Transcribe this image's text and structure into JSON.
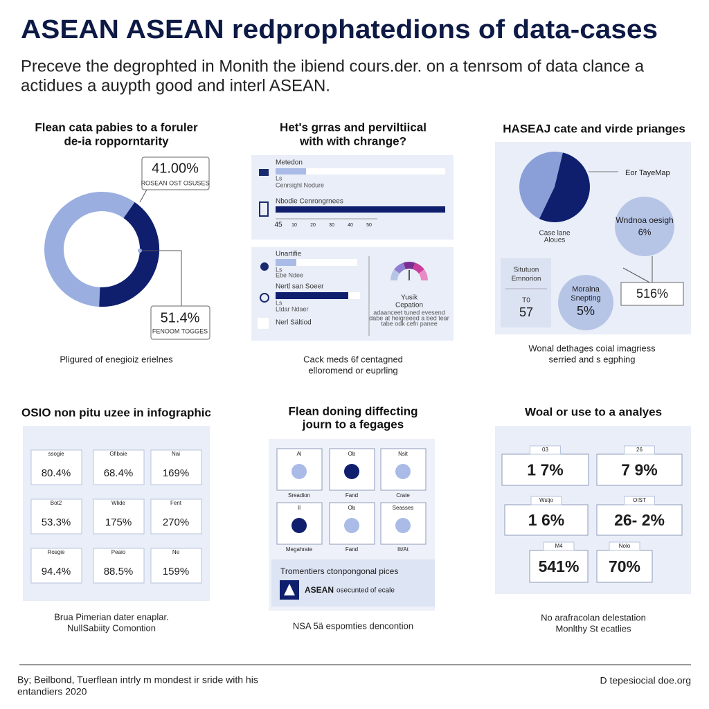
{
  "header": {
    "title": "ASEAN ASEAN redprophatedions of data-cases",
    "subtitle": [
      "Preceve the degrophted in Monith the ibiend cours.der. on a tenrsom of data clance a",
      "actidues a auypth good and interl ASEAN."
    ]
  },
  "donut_panel": {
    "title": [
      "Flean cata pabies to a foruler",
      "de-ia ropporntarity"
    ],
    "callouts": [
      {
        "share": {
          "value": 41,
          "label": "41.00%"
        },
        "note": "ROSEAN OST OSUSES"
      },
      {
        "share": "51.4%",
        "note": "FENOOM TOGGES"
      }
    ],
    "caption": "Pligured of enegioiz erielnes"
  },
  "bars_panel": {
    "title": [
      "Het's grras and perviltiical",
      "with with chrange?"
    ],
    "top_box": {
      "rows": [
        {
          "label": "Metedon",
          "sub": [
            "Ls",
            "Cenrsighl Nodure"
          ]
        },
        {
          "label": "Nbodie Cenrongrnees"
        }
      ],
      "axis": [
        "45",
        "10",
        "20",
        "30",
        "40",
        "50"
      ]
    },
    "bottom_box": {
      "rows": [
        {
          "label": "Unartifie",
          "sub": [
            "Ls",
            "Ebe Ndee"
          ]
        },
        {
          "label": "Nertl san Soeer",
          "sub": [
            "Ls",
            "Ltdar Ndaer"
          ]
        },
        {
          "label": "Nerl Sältiod"
        }
      ],
      "gauge": {
        "label": [
          "Yusik",
          "Cepation"
        ],
        "notes": [
          "adaanceet tuned evesend",
          "dabe at heigreeed a bed tear",
          "tabe odk cefn panee"
        ]
      }
    },
    "caption": [
      "Cack meds 6f centagned",
      "elloromend or euprling"
    ]
  },
  "pie_panel": {
    "title": "HASEAJ cate and virde prianges",
    "pie_label": "Eor TayeMap",
    "pie_caption": [
      "Case lane",
      "Aloues"
    ],
    "big_bubble": [
      "Wndnoa oesigh",
      "6%"
    ],
    "box_value": "516%",
    "side_box": {
      "label": [
        "Situtuon",
        "Emnorion"
      ],
      "values": [
        "T0",
        "57"
      ]
    },
    "small_bubble": [
      "Moralna",
      "Snepting",
      "5%"
    ],
    "caption": [
      "Wonal dethages coial imagriess",
      "serried and s egphing"
    ]
  },
  "grid_panel": {
    "title": "OSIO non pitu uzee in infographic",
    "cards": [
      [
        {
          "label": "ssogie",
          "value": "80.4%"
        },
        {
          "label": "Gfibaie",
          "value": "68.4%"
        },
        {
          "label": "Nai",
          "value": "169%"
        }
      ],
      [
        {
          "label": "Bot2",
          "value": "53.3%"
        },
        {
          "label": "Wlide",
          "value": "175%"
        },
        {
          "label": "Fent",
          "value": "270%"
        }
      ],
      [
        {
          "label": "Rosgie",
          "value": "94.4%"
        },
        {
          "label": "Peaio",
          "value": "88.5%"
        },
        {
          "label": "Ne",
          "value": "159%"
        }
      ]
    ],
    "caption": [
      "Brua Pimerian dater enaplar.",
      "NullSabiity Comontion"
    ]
  },
  "dots_panel": {
    "title": [
      "Flean doning diffecting",
      "journ to a fegages"
    ],
    "cards": [
      [
        {
          "top": "Al",
          "bottom": "Sreadion"
        },
        {
          "top": "Ob",
          "bottom": "Fand"
        },
        {
          "top": "Nsit",
          "bottom": "Crate"
        }
      ],
      [
        {
          "top": "Il",
          "bottom": "Megahrate"
        },
        {
          "top": "Ob",
          "bottom": "Fand"
        },
        {
          "top": "Seasses",
          "bottom": "Ilt/At"
        }
      ]
    ],
    "note": {
      "text": "Tromentiers ctonpongonal pices",
      "brand": "ASEAN",
      "brand_note": "osecunted of ecale"
    },
    "caption": "NSA 5ä espomties dencontion"
  },
  "stats_panel": {
    "title": "Woal or use to a analyes",
    "cards": [
      {
        "label": "03",
        "value": "1 7%"
      },
      {
        "label": "26",
        "value": "7 9%"
      },
      {
        "label": "Wstjo",
        "value": "1 6%"
      },
      {
        "label": "OIST",
        "value": "26- 2%"
      },
      {
        "label": "M4",
        "value": "541%"
      },
      {
        "label": "Nolo",
        "value": "70%"
      }
    ],
    "caption": [
      "No arafracolan delestation",
      "Monlthy St ecatlies"
    ]
  },
  "footer": {
    "source": [
      "By; Beilbond, Tuerflean intrly m mondest ir sride with his",
      "entandiers 2020"
    ],
    "site": "D tepesiocial doe.org"
  }
}
